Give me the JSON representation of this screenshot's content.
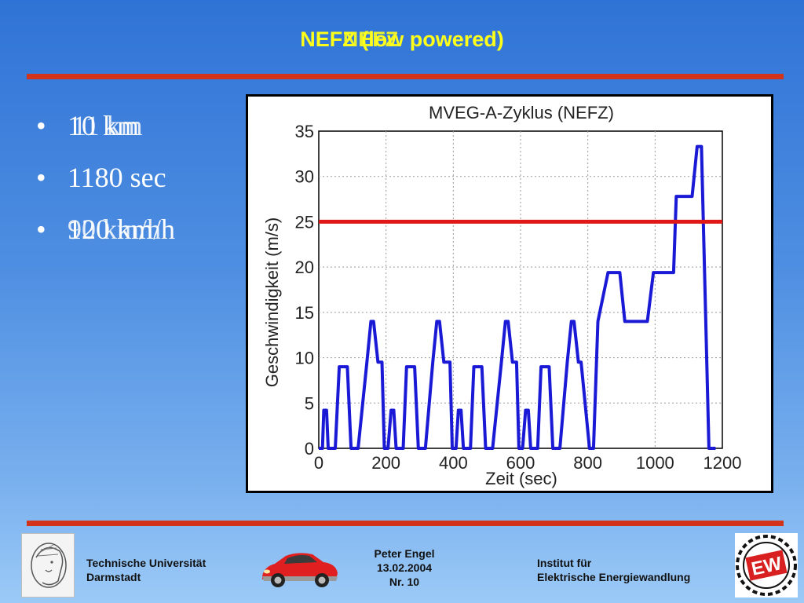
{
  "slide": {
    "title": "NEFZ (low powered)",
    "title_overlay": "NEFZ"
  },
  "bullets": [
    {
      "text": "10 km",
      "overlay": "11 km"
    },
    {
      "text": "1180 sec",
      "overlay": ""
    },
    {
      "text": "120 km/h",
      "overlay": "90 km/h"
    }
  ],
  "chart_data": {
    "type": "line",
    "title": "MVEG-A-Zyklus (NEFZ)",
    "xlabel": "Zeit (sec)",
    "ylabel": "Geschwindigkeit (m/s)",
    "xlim": [
      0,
      1200
    ],
    "ylim": [
      0,
      35
    ],
    "xticks": [
      0,
      200,
      400,
      600,
      800,
      1000,
      1200
    ],
    "yticks": [
      0,
      5,
      10,
      15,
      20,
      25,
      30,
      35
    ],
    "grid": true,
    "series": [
      {
        "color": "#1a1ad6",
        "x": [
          0,
          11,
          15,
          23,
          28,
          49,
          61,
          85,
          96,
          117,
          143,
          155,
          163,
          176,
          188,
          195,
          200,
          206,
          215,
          223,
          230,
          251,
          261,
          285,
          296,
          317,
          339,
          351,
          359,
          372,
          390,
          397,
          402,
          408,
          415,
          423,
          430,
          451,
          461,
          485,
          496,
          517,
          543,
          555,
          563,
          576,
          588,
          595,
          600,
          606,
          615,
          623,
          630,
          651,
          661,
          685,
          696,
          717,
          739,
          751,
          759,
          772,
          780,
          805,
          813,
          817,
          830,
          860,
          868,
          895,
          910,
          955,
          977,
          995,
          1035,
          1055,
          1063,
          1095,
          1110,
          1125,
          1138,
          1160,
          1180
        ],
        "y": [
          0,
          0,
          4.2,
          4.2,
          0,
          0,
          9,
          9,
          0,
          0,
          9.5,
          14,
          14,
          9.5,
          9.5,
          0,
          0,
          0,
          4.2,
          4.2,
          0,
          0,
          9,
          9,
          0,
          0,
          9.5,
          14,
          14,
          9.5,
          9.5,
          0,
          0,
          0,
          4.2,
          4.2,
          0,
          0,
          9,
          9,
          0,
          0,
          9.5,
          14,
          14,
          9.5,
          9.5,
          0,
          0,
          0,
          4.2,
          4.2,
          0,
          0,
          9,
          9,
          0,
          0,
          9.5,
          14,
          14,
          9.5,
          9.5,
          0,
          0,
          0,
          14,
          19.4,
          19.4,
          19.4,
          14,
          14,
          14,
          19.4,
          19.4,
          19.4,
          27.8,
          27.8,
          27.8,
          33.3,
          33.3,
          0,
          0
        ]
      }
    ],
    "reference_line": {
      "y": 25,
      "color": "#e01818"
    }
  },
  "footer": {
    "university_line1": "Technische Universität",
    "university_line2": "Darmstadt",
    "author": "Peter Engel",
    "date": "13.02.2004",
    "page": "Nr. 10",
    "institute_line1": "Institut für",
    "institute_line2": "Elektrische Energiewandlung",
    "logo_right_text": "EW"
  },
  "colors": {
    "title": "#ffff1a",
    "rule": "#d1341a",
    "bullet_text": "#ffffff"
  }
}
